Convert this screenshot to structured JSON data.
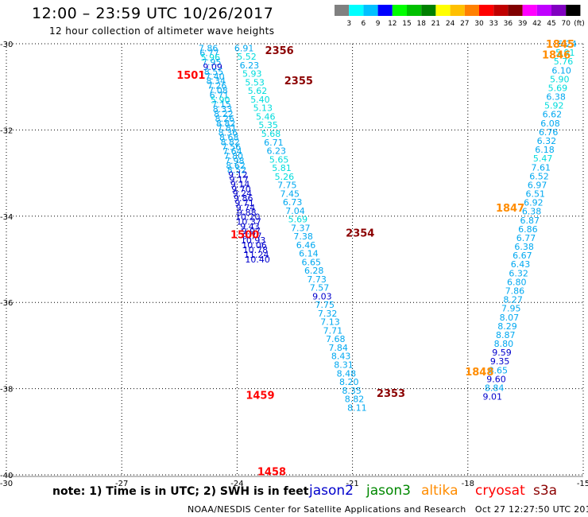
{
  "header": {
    "title": "12:00 – 23:59 UTC 10/26/2017",
    "subtitle": "12 hour collection of altimeter wave heights"
  },
  "legend": {
    "unit": "(ft)",
    "colors": [
      "#808080",
      "#00ffff",
      "#00c0ff",
      "#0000ff",
      "#00ff00",
      "#00c000",
      "#008000",
      "#ffff00",
      "#ffc000",
      "#ff8000",
      "#ff0000",
      "#c00000",
      "#800000",
      "#ff00ff",
      "#c000ff",
      "#8000c0",
      "#000000"
    ],
    "labels": [
      "3",
      "6",
      "9",
      "12",
      "15",
      "18",
      "21",
      "24",
      "27",
      "30",
      "33",
      "36",
      "39",
      "42",
      "45",
      "70"
    ]
  },
  "note": {
    "text": "note: 1) Time is in UTC; 2) SWH is in feet",
    "satellites": [
      {
        "name": "jason2",
        "color": "#0000cc"
      },
      {
        "name": "jason3",
        "color": "#008800"
      },
      {
        "name": "altika",
        "color": "#ff8c00"
      },
      {
        "name": "cryosat",
        "color": "#ff0000"
      },
      {
        "name": "s3a",
        "color": "#8b0000"
      }
    ]
  },
  "footer": "NOAA/NESDIS Center for Satellite Applications and Research   Oct 27 12:27:50 UTC 2017",
  "chart_data": {
    "type": "scatter",
    "xlim": [
      -30,
      -15
    ],
    "ylim": [
      -40,
      -30
    ],
    "x_ticks": [
      "-30",
      "-27",
      "-24",
      "-21",
      "-18",
      "-15"
    ],
    "y_ticks": [
      "-30",
      "-32",
      "-34",
      "-36",
      "-38",
      "-40"
    ],
    "grid": true,
    "track_labels": [
      {
        "text": "2356",
        "lon": -22.9,
        "lat": -30.15,
        "color": "#8b0000"
      },
      {
        "text": "2355",
        "lon": -22.4,
        "lat": -30.85,
        "color": "#8b0000"
      },
      {
        "text": "2354",
        "lon": -20.8,
        "lat": -34.38,
        "color": "#8b0000"
      },
      {
        "text": "2353",
        "lon": -20.0,
        "lat": -38.1,
        "color": "#8b0000"
      },
      {
        "text": "1501",
        "lon": -25.2,
        "lat": -30.72,
        "color": "#ff0000"
      },
      {
        "text": "1500",
        "lon": -23.8,
        "lat": -34.42,
        "color": "#ff0000"
      },
      {
        "text": "1459",
        "lon": -23.4,
        "lat": -38.15,
        "color": "#ff0000"
      },
      {
        "text": "1458",
        "lon": -23.1,
        "lat": -39.92,
        "color": "#ff0000"
      },
      {
        "text": "1845",
        "lon": -15.6,
        "lat": -30.0,
        "color": "#ff8c00"
      },
      {
        "text": "1846",
        "lon": -15.7,
        "lat": -30.25,
        "color": "#ff8c00"
      },
      {
        "text": "1847",
        "lon": -16.9,
        "lat": -33.8,
        "color": "#ff8c00"
      },
      {
        "text": "1848",
        "lon": -17.7,
        "lat": -37.6,
        "color": "#ff8c00"
      }
    ],
    "series": [
      {
        "name": "altika",
        "lon_start": -24.75,
        "lat_start": -30.1,
        "lon_step": 0.0285,
        "lat_step": 0.1088,
        "values": [
          7.86,
          6.77,
          5.96,
          7.95,
          9.09,
          8.55,
          7.4,
          8.34,
          7.26,
          7.08,
          6.71,
          5.9,
          7.15,
          8.33,
          8.22,
          8.26,
          8.82,
          7.81,
          8.36,
          8.68,
          8.82,
          7.56,
          7.64,
          7.8,
          7.98,
          8.62,
          8.52,
          9.12,
          9.17,
          9.14,
          9.7,
          9.24,
          9.86,
          9.71,
          9.74,
          9.88,
          10.2,
          10.37,
          9.43,
          9.97,
          9.77,
          10.93,
          10.06,
          10.78,
          11.24,
          10.4
        ]
      },
      {
        "name": "s3a",
        "lon_start": -23.82,
        "lat_start": -30.1,
        "lon_step": 0.07,
        "lat_step": 0.1985,
        "values": [
          6.91,
          5.52,
          6.23,
          5.93,
          5.53,
          5.62,
          5.4,
          5.13,
          5.46,
          5.35,
          5.68,
          6.71,
          6.23,
          5.65,
          5.81,
          5.26,
          7.75,
          7.45,
          6.73,
          7.04,
          5.69,
          7.37,
          7.38,
          6.46,
          6.14,
          6.65,
          6.28,
          7.73,
          7.57,
          9.03,
          7.75,
          7.32,
          7.13,
          7.71,
          7.68,
          7.84,
          8.43,
          8.31,
          8.48,
          8.2,
          8.35,
          8.82,
          8.11
        ]
      },
      {
        "name": "jason3",
        "lon_start": -15.42,
        "lat_start": -30.0,
        "lon_step": -0.0485,
        "lat_step": 0.2046,
        "values": [
          6.24,
          5.91,
          5.76,
          6.1,
          5.9,
          5.69,
          6.38,
          5.92,
          6.62,
          6.08,
          6.76,
          6.32,
          6.18,
          5.47,
          7.61,
          6.52,
          6.97,
          6.51,
          6.92,
          6.38,
          6.87,
          6.86,
          6.77,
          6.38,
          6.67,
          6.43,
          6.32,
          6.8,
          7.86,
          8.27,
          7.95,
          8.07,
          8.29,
          8.87,
          8.8,
          9.59,
          9.35,
          8.65,
          9.6,
          8.84,
          9.01
        ]
      }
    ]
  }
}
